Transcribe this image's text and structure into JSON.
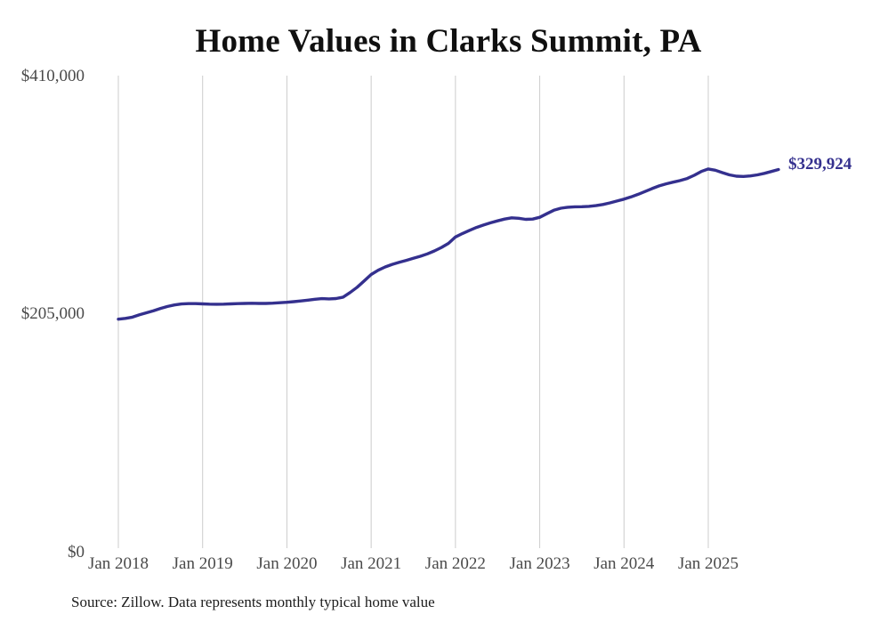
{
  "chart_data": {
    "type": "line",
    "title": "Home Values in Clarks Summit, PA",
    "source_note": "Source: Zillow. Data represents monthly typical home value",
    "end_label": "$329,924",
    "current_value": 329924,
    "legend": "none",
    "grid": "vertical-only",
    "x_axis": {
      "ticks": [
        "Jan 2018",
        "Jan 2019",
        "Jan 2020",
        "Jan 2021",
        "Jan 2022",
        "Jan 2023",
        "Jan 2024",
        "Jan 2025"
      ],
      "unit": "month"
    },
    "y_axis": {
      "range": [
        0,
        410000
      ],
      "ticks": [
        {
          "label": "$410,000",
          "value": 410000
        },
        {
          "label": "$205,000",
          "value": 205000
        },
        {
          "label": "$0",
          "value": 0
        }
      ]
    },
    "series": [
      {
        "name": "Monthly typical home value",
        "start_month": "2018-01",
        "end_month": "2025-11",
        "values": [
          201000,
          201700,
          202800,
          204800,
          206500,
          208300,
          210300,
          212000,
          213300,
          214100,
          214400,
          214400,
          214200,
          214000,
          213900,
          214000,
          214200,
          214400,
          214600,
          214700,
          214600,
          214600,
          214800,
          215200,
          215600,
          216100,
          216700,
          217400,
          218200,
          218700,
          218500,
          218800,
          220000,
          224000,
          228500,
          234000,
          239500,
          243200,
          246000,
          248200,
          250000,
          251700,
          253400,
          255200,
          257300,
          259800,
          262800,
          266300,
          271800,
          274800,
          277500,
          280000,
          282100,
          284000,
          285700,
          287200,
          288300,
          287900,
          287000,
          287200,
          288800,
          291800,
          294800,
          296600,
          297400,
          297800,
          297900,
          298200,
          298800,
          299800,
          301200,
          302800,
          304400,
          306300,
          308500,
          311000,
          313500,
          315800,
          317600,
          319000,
          320400,
          322200,
          324900,
          328200,
          330400,
          329300,
          327200,
          325300,
          324200,
          323900,
          324400,
          325300,
          326600,
          328200,
          329924
        ]
      }
    ],
    "colors": {
      "line": "#34308e",
      "grid": "#cccccc",
      "axis_text": "#4a4a4a",
      "title": "#101010",
      "source": "#1c1c1c",
      "background": "#ffffff"
    }
  }
}
